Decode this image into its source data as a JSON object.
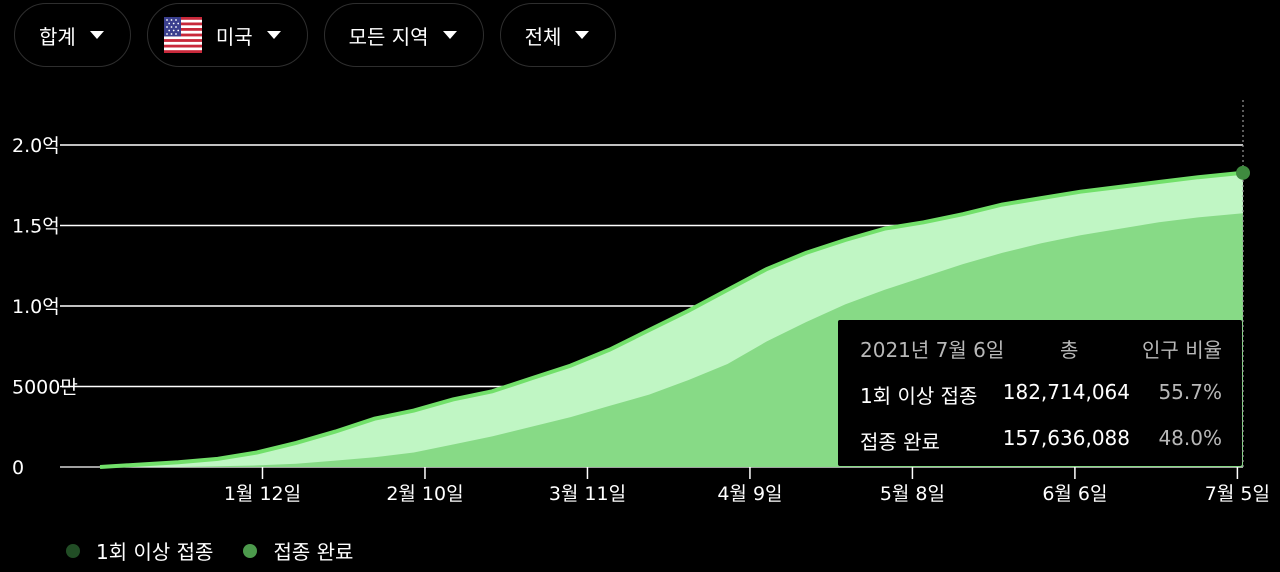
{
  "filters": {
    "aggregation": "합계",
    "country": "미국",
    "region": "모든 지역",
    "group": "전체"
  },
  "icons": {
    "caret": "caret-down-icon",
    "flag": "us-flag-icon"
  },
  "colors": {
    "first_dose_fill": "#c0f6c4",
    "first_dose_line": "#72e06a",
    "fully_vaccinated_fill": "#87da86",
    "marker": "#3f8b3f",
    "legend_first": "#214d25",
    "legend_full": "#4c9a4c"
  },
  "chart_data": {
    "type": "area",
    "x": [
      "2020-12-14",
      "2020-12-21",
      "2020-12-28",
      "2021-01-04",
      "2021-01-11",
      "2021-01-18",
      "2021-01-25",
      "2021-02-01",
      "2021-02-08",
      "2021-02-15",
      "2021-02-22",
      "2021-03-01",
      "2021-03-08",
      "2021-03-15",
      "2021-03-22",
      "2021-03-29",
      "2021-04-05",
      "2021-04-12",
      "2021-04-19",
      "2021-04-26",
      "2021-05-03",
      "2021-05-10",
      "2021-05-17",
      "2021-05-24",
      "2021-05-31",
      "2021-06-07",
      "2021-06-14",
      "2021-06-21",
      "2021-06-28",
      "2021-07-06"
    ],
    "series": [
      {
        "name": "1회 이상 접종",
        "values": [
          0,
          1500000,
          3000000,
          5000000,
          9000000,
          15000000,
          22000000,
          30000000,
          35000000,
          42000000,
          47000000,
          55000000,
          63000000,
          73000000,
          85000000,
          97000000,
          110000000,
          123000000,
          133000000,
          141000000,
          148000000,
          152000000,
          157000000,
          163000000,
          167000000,
          171000000,
          174000000,
          177000000,
          180000000,
          182714064
        ]
      },
      {
        "name": "접종 완료",
        "values": [
          0,
          0,
          0,
          500000,
          1000000,
          2000000,
          4000000,
          6000000,
          9000000,
          14000000,
          19000000,
          25000000,
          31000000,
          38000000,
          45000000,
          54000000,
          64000000,
          78000000,
          90000000,
          101000000,
          110000000,
          118000000,
          126000000,
          133000000,
          139000000,
          144000000,
          148000000,
          152000000,
          155000000,
          157636088
        ]
      }
    ],
    "x_ticks": [
      {
        "date": "2021-01-12",
        "label": "1월 12일"
      },
      {
        "date": "2021-02-10",
        "label": "2월 10일"
      },
      {
        "date": "2021-03-11",
        "label": "3월 11일"
      },
      {
        "date": "2021-04-09",
        "label": "4월 9일"
      },
      {
        "date": "2021-05-08",
        "label": "5월 8일"
      },
      {
        "date": "2021-06-06",
        "label": "6월 6일"
      },
      {
        "date": "2021-07-05",
        "label": "7월 5일"
      }
    ],
    "y_ticks": [
      {
        "value": 0,
        "label": "0"
      },
      {
        "value": 50000000,
        "label": "5000만"
      },
      {
        "value": 100000000,
        "label": "1.0억"
      },
      {
        "value": 150000000,
        "label": "1.5억"
      },
      {
        "value": 200000000,
        "label": "2.0억"
      }
    ],
    "ylim": [
      0,
      200000000
    ],
    "grid": true,
    "legend_position": "bottom-left"
  },
  "tooltip": {
    "date": "2021년 7월 6일",
    "col_total": "총",
    "col_ratio": "인구 비율",
    "rows": [
      {
        "label": "1회 이상 접종",
        "total": "182,714,064",
        "ratio": "55.7%"
      },
      {
        "label": "접종 완료",
        "total": "157,636,088",
        "ratio": "48.0%"
      }
    ]
  },
  "legend": [
    {
      "label": "1회 이상 접종"
    },
    {
      "label": "접종 완료"
    }
  ]
}
